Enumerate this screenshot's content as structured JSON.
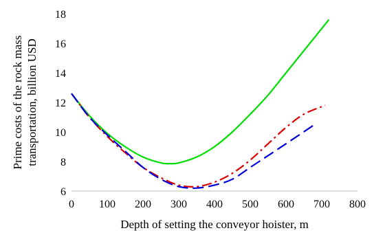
{
  "chart_data": {
    "type": "line",
    "title": "",
    "xlabel": "Depth of setting the conveyor hoister, m",
    "ylabel": [
      "Prime costs of the rock mass",
      "transportation, billion USD"
    ],
    "xlim": [
      0,
      800
    ],
    "ylim": [
      6,
      18
    ],
    "x_ticks": [
      "0",
      "100",
      "200",
      "300",
      "400",
      "500",
      "600",
      "700",
      "800"
    ],
    "y_ticks": [
      "6",
      "8",
      "10",
      "12",
      "14",
      "16",
      "18"
    ],
    "grid": false,
    "legend": "none",
    "series": [
      {
        "color": "#00dd00",
        "style": "solid",
        "x": [
          0,
          50,
          100,
          150,
          200,
          250,
          275,
          300,
          350,
          400,
          450,
          500,
          550,
          600,
          650,
          700,
          720
        ],
        "y": [
          12.6,
          11.1,
          9.9,
          9.0,
          8.3,
          7.9,
          7.85,
          7.9,
          8.3,
          9.0,
          10.0,
          11.2,
          12.5,
          14.0,
          15.5,
          17.0,
          17.6
        ]
      },
      {
        "color": "#dd0000",
        "style": "dashdot",
        "x": [
          0,
          50,
          100,
          150,
          200,
          250,
          300,
          350,
          400,
          450,
          500,
          550,
          600,
          650,
          710
        ],
        "y": [
          12.6,
          11.0,
          9.7,
          8.6,
          7.6,
          6.9,
          6.4,
          6.3,
          6.6,
          7.2,
          8.1,
          9.2,
          10.3,
          11.2,
          11.8
        ]
      },
      {
        "color": "#0000dd",
        "style": "dashed",
        "x": [
          0,
          50,
          100,
          150,
          200,
          250,
          300,
          350,
          400,
          450,
          500,
          550,
          600,
          680
        ],
        "y": [
          12.6,
          11.0,
          9.8,
          8.7,
          7.6,
          6.8,
          6.3,
          6.2,
          6.4,
          6.8,
          7.6,
          8.4,
          9.2,
          10.5
        ]
      }
    ]
  }
}
